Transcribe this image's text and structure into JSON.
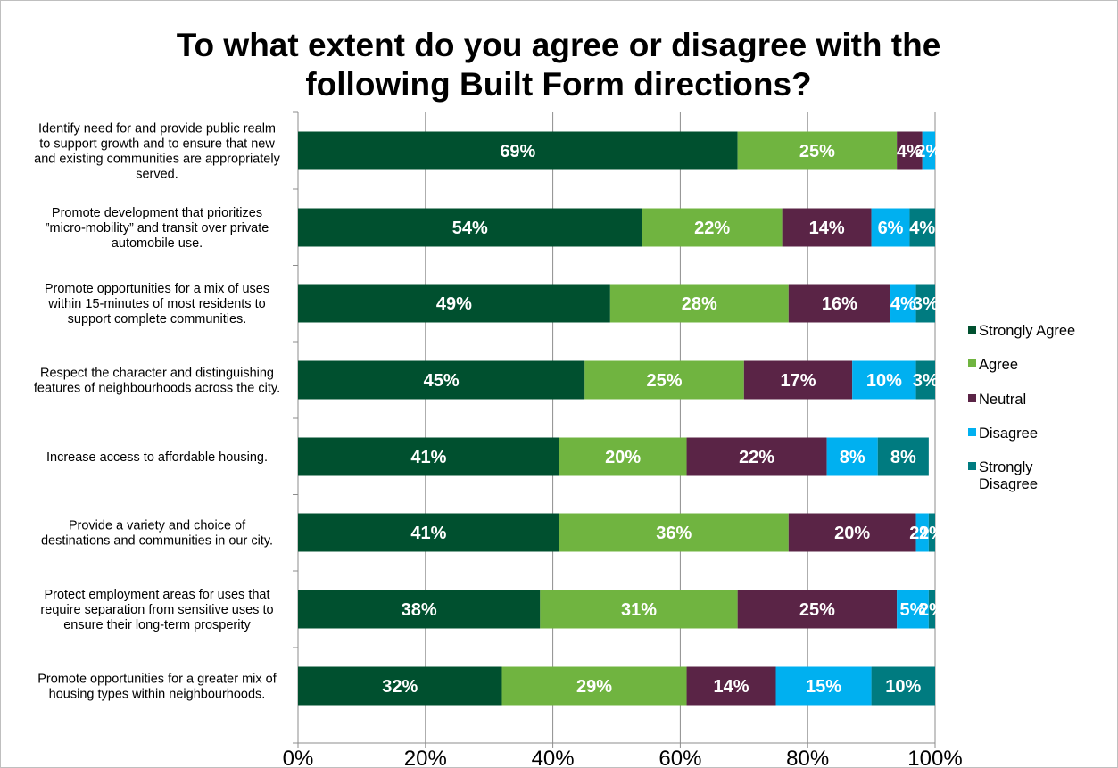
{
  "chart_data": {
    "type": "bar",
    "orientation": "horizontal",
    "stacked": true,
    "title_lines": [
      "To what extent do you agree or disagree with the",
      "following Built Form directions?"
    ],
    "categories": [
      [
        "Identify need for and provide public realm",
        "to support growth and to ensure that new",
        "and existing communities are appropriately",
        "served."
      ],
      [
        "Promote development that prioritizes",
        "”micro-mobility” and transit over private",
        "automobile use."
      ],
      [
        "Promote opportunities for a mix of uses",
        "within 15-minutes of most residents to",
        "support complete communities."
      ],
      [
        "Respect the character and distinguishing",
        "features of neighbourhoods across the city."
      ],
      [
        "Increase access to affordable housing."
      ],
      [
        "Provide a variety and choice of",
        "destinations and communities in our city."
      ],
      [
        "Protect employment areas for uses that",
        "require separation from sensitive uses  to",
        "ensure their long-term prosperity"
      ],
      [
        "Promote opportunities for a greater mix of",
        "housing types  within neighbourhoods."
      ]
    ],
    "series": [
      {
        "name": "Strongly Agree",
        "color": "#00502F",
        "values": [
          69,
          54,
          49,
          45,
          41,
          41,
          38,
          32
        ],
        "labels": [
          "69%",
          "54%",
          "49%",
          "45%",
          "41%",
          "41%",
          "38%",
          "32%"
        ]
      },
      {
        "name": "Agree",
        "color": "#70B440",
        "values": [
          25,
          22,
          28,
          25,
          20,
          36,
          31,
          29
        ],
        "labels": [
          "25%",
          "22%",
          "28%",
          "25%",
          "20%",
          "36%",
          "31%",
          "29%"
        ]
      },
      {
        "name": "Neutral",
        "color": "#5A2446",
        "values": [
          4,
          14,
          16,
          17,
          22,
          20,
          25,
          14
        ],
        "labels": [
          "4%",
          "14%",
          "16%",
          "17%",
          "22%",
          "20%",
          "25%",
          "14%"
        ]
      },
      {
        "name": "Disagree",
        "color": "#00B0F0",
        "values": [
          2,
          6,
          4,
          10,
          8,
          2,
          5,
          15
        ],
        "labels": [
          "2%",
          "6%",
          "4%",
          "10%",
          "8%",
          "2%",
          "5%",
          "15%"
        ]
      },
      {
        "name": "Strongly Disagree",
        "color": "#007B80",
        "values": [
          0,
          4,
          3,
          3,
          8,
          2,
          2,
          10
        ],
        "labels": [
          "",
          "4%",
          "3%",
          "3%",
          "8%",
          "2%",
          "2%",
          "10%"
        ]
      }
    ],
    "xlim": [
      0,
      100
    ],
    "xticks": [
      0,
      20,
      40,
      60,
      80,
      100
    ],
    "xtick_labels": [
      "0%",
      "20%",
      "40%",
      "60%",
      "80%",
      "100%"
    ],
    "grid": true,
    "legend_position": "right",
    "legend_lines": [
      [
        "Strongly Agree"
      ],
      [
        "Agree"
      ],
      [
        "Neutral"
      ],
      [
        "Disagree"
      ],
      [
        "Strongly",
        "Disagree"
      ]
    ]
  }
}
